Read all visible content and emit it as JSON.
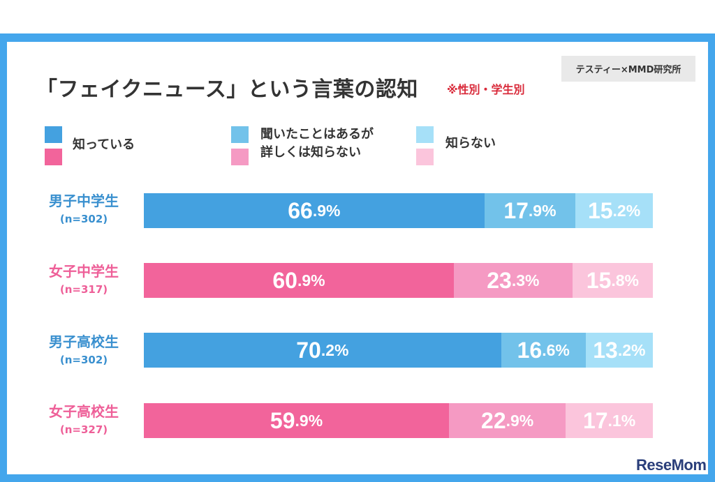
{
  "header": {
    "title": "「フェイクニュース」という言葉の認知",
    "note": "※性別・学生別",
    "source": "テスティー×MMD研究所"
  },
  "legend": [
    {
      "lines": [
        "知っている"
      ],
      "color_boy": "#44a1e0",
      "color_girl": "#f2649b"
    },
    {
      "lines": [
        "聞いたことはあるが",
        "詳しくは知らない"
      ],
      "color_boy": "#72c2ea",
      "color_girl": "#f59ac3"
    },
    {
      "lines": [
        "知らない"
      ],
      "color_boy": "#a6e0f8",
      "color_girl": "#fbc5dc"
    }
  ],
  "colors": {
    "boy": [
      "#44a1e0",
      "#72c2ea",
      "#a6e0f8"
    ],
    "girl": [
      "#f2649b",
      "#f59ac3",
      "#fbc5dc"
    ],
    "boy_label": "#3a90cf",
    "girl_label": "#ee5f98"
  },
  "chart_data": {
    "type": "bar",
    "stacked": true,
    "orientation": "horizontal",
    "title": "「フェイクニュース」という言葉の認知",
    "categories": [
      "男子中学生",
      "女子中学生",
      "男子高校生",
      "女子高校生"
    ],
    "sample_sizes": [
      "(n=302)",
      "(n=317)",
      "(n=302)",
      "(n=327)"
    ],
    "genders": [
      "boy",
      "girl",
      "boy",
      "girl"
    ],
    "series": [
      {
        "name": "知っている",
        "values": [
          66.9,
          60.9,
          70.2,
          59.9
        ]
      },
      {
        "name": "聞いたことはあるが詳しくは知らない",
        "values": [
          17.9,
          23.3,
          16.6,
          22.9
        ]
      },
      {
        "name": "知らない",
        "values": [
          15.2,
          15.8,
          13.2,
          17.1
        ]
      }
    ],
    "unit": "%"
  },
  "brand": "ReseMom"
}
